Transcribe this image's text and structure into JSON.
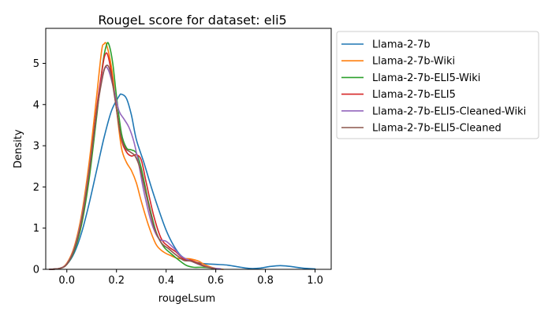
{
  "chart_data": {
    "type": "line",
    "title": "RougeL score for dataset: eli5",
    "xlabel": "rougeLsum",
    "ylabel": "Density",
    "xlim": [
      -0.085,
      1.065
    ],
    "ylim": [
      0,
      5.85
    ],
    "xticks": [
      0.0,
      0.2,
      0.4,
      0.6,
      0.8,
      1.0
    ],
    "xtick_labels": [
      "0.0",
      "0.2",
      "0.4",
      "0.6",
      "0.8",
      "1.0"
    ],
    "yticks": [
      0,
      1,
      2,
      3,
      4,
      5
    ],
    "ytick_labels": [
      "0",
      "1",
      "2",
      "3",
      "4",
      "5"
    ],
    "grid": false,
    "legend_position": "outside-right",
    "series": [
      {
        "name": "Llama-2-7b",
        "color": "#1f77b4",
        "points": [
          [
            -0.07,
            0.0
          ],
          [
            -0.03,
            0.02
          ],
          [
            0.0,
            0.12
          ],
          [
            0.03,
            0.4
          ],
          [
            0.06,
            0.9
          ],
          [
            0.09,
            1.6
          ],
          [
            0.12,
            2.4
          ],
          [
            0.15,
            3.2
          ],
          [
            0.18,
            3.85
          ],
          [
            0.21,
            4.2
          ],
          [
            0.22,
            4.25
          ],
          [
            0.24,
            4.15
          ],
          [
            0.26,
            3.75
          ],
          [
            0.28,
            3.15
          ],
          [
            0.31,
            2.6
          ],
          [
            0.34,
            2.0
          ],
          [
            0.37,
            1.45
          ],
          [
            0.4,
            0.95
          ],
          [
            0.43,
            0.58
          ],
          [
            0.46,
            0.33
          ],
          [
            0.5,
            0.2
          ],
          [
            0.55,
            0.14
          ],
          [
            0.6,
            0.12
          ],
          [
            0.65,
            0.1
          ],
          [
            0.7,
            0.05
          ],
          [
            0.74,
            0.02
          ],
          [
            0.78,
            0.03
          ],
          [
            0.82,
            0.07
          ],
          [
            0.86,
            0.09
          ],
          [
            0.9,
            0.07
          ],
          [
            0.95,
            0.03
          ],
          [
            1.0,
            0.01
          ]
        ]
      },
      {
        "name": "Llama-2-7b-Wiki",
        "color": "#ff7f0e",
        "points": [
          [
            -0.07,
            0.0
          ],
          [
            -0.03,
            0.02
          ],
          [
            0.0,
            0.15
          ],
          [
            0.03,
            0.55
          ],
          [
            0.06,
            1.35
          ],
          [
            0.09,
            2.6
          ],
          [
            0.12,
            4.2
          ],
          [
            0.14,
            5.3
          ],
          [
            0.15,
            5.47
          ],
          [
            0.16,
            5.45
          ],
          [
            0.18,
            4.9
          ],
          [
            0.2,
            3.9
          ],
          [
            0.22,
            2.95
          ],
          [
            0.24,
            2.6
          ],
          [
            0.26,
            2.4
          ],
          [
            0.28,
            2.1
          ],
          [
            0.3,
            1.65
          ],
          [
            0.33,
            1.05
          ],
          [
            0.36,
            0.6
          ],
          [
            0.39,
            0.42
          ],
          [
            0.42,
            0.33
          ],
          [
            0.45,
            0.26
          ],
          [
            0.48,
            0.26
          ],
          [
            0.5,
            0.25
          ],
          [
            0.53,
            0.2
          ],
          [
            0.56,
            0.1
          ],
          [
            0.6,
            0.02
          ],
          [
            0.63,
            0.0
          ]
        ]
      },
      {
        "name": "Llama-2-7b-ELI5-Wiki",
        "color": "#2ca02c",
        "points": [
          [
            -0.07,
            0.0
          ],
          [
            -0.03,
            0.02
          ],
          [
            0.0,
            0.12
          ],
          [
            0.03,
            0.45
          ],
          [
            0.06,
            1.1
          ],
          [
            0.09,
            2.2
          ],
          [
            0.12,
            3.7
          ],
          [
            0.145,
            5.0
          ],
          [
            0.16,
            5.45
          ],
          [
            0.17,
            5.45
          ],
          [
            0.185,
            5.0
          ],
          [
            0.2,
            4.2
          ],
          [
            0.22,
            3.3
          ],
          [
            0.24,
            2.95
          ],
          [
            0.26,
            2.9
          ],
          [
            0.28,
            2.82
          ],
          [
            0.3,
            2.45
          ],
          [
            0.33,
            1.6
          ],
          [
            0.36,
            0.9
          ],
          [
            0.39,
            0.55
          ],
          [
            0.42,
            0.38
          ],
          [
            0.45,
            0.23
          ],
          [
            0.48,
            0.1
          ],
          [
            0.51,
            0.05
          ],
          [
            0.54,
            0.05
          ],
          [
            0.57,
            0.04
          ],
          [
            0.6,
            0.01
          ]
        ]
      },
      {
        "name": "Llama-2-7b-ELI5",
        "color": "#d62728",
        "points": [
          [
            -0.07,
            0.0
          ],
          [
            -0.03,
            0.02
          ],
          [
            0.0,
            0.13
          ],
          [
            0.03,
            0.5
          ],
          [
            0.06,
            1.2
          ],
          [
            0.09,
            2.4
          ],
          [
            0.12,
            3.9
          ],
          [
            0.145,
            4.95
          ],
          [
            0.155,
            5.22
          ],
          [
            0.165,
            5.2
          ],
          [
            0.18,
            4.75
          ],
          [
            0.2,
            3.9
          ],
          [
            0.22,
            3.15
          ],
          [
            0.24,
            2.85
          ],
          [
            0.26,
            2.75
          ],
          [
            0.28,
            2.78
          ],
          [
            0.3,
            2.65
          ],
          [
            0.32,
            2.1
          ],
          [
            0.35,
            1.3
          ],
          [
            0.38,
            0.75
          ],
          [
            0.41,
            0.55
          ],
          [
            0.44,
            0.42
          ],
          [
            0.47,
            0.25
          ],
          [
            0.5,
            0.22
          ],
          [
            0.53,
            0.15
          ],
          [
            0.56,
            0.07
          ],
          [
            0.6,
            0.01
          ]
        ]
      },
      {
        "name": "Llama-2-7b-ELI5-Cleaned-Wiki",
        "color": "#9467bd",
        "points": [
          [
            -0.07,
            0.0
          ],
          [
            -0.03,
            0.02
          ],
          [
            0.0,
            0.13
          ],
          [
            0.03,
            0.5
          ],
          [
            0.06,
            1.25
          ],
          [
            0.09,
            2.4
          ],
          [
            0.12,
            3.8
          ],
          [
            0.14,
            4.6
          ],
          [
            0.155,
            4.9
          ],
          [
            0.17,
            4.8
          ],
          [
            0.19,
            4.35
          ],
          [
            0.21,
            3.85
          ],
          [
            0.23,
            3.65
          ],
          [
            0.25,
            3.45
          ],
          [
            0.27,
            3.1
          ],
          [
            0.29,
            2.55
          ],
          [
            0.31,
            1.9
          ],
          [
            0.34,
            1.15
          ],
          [
            0.37,
            0.75
          ],
          [
            0.4,
            0.68
          ],
          [
            0.43,
            0.52
          ],
          [
            0.46,
            0.32
          ],
          [
            0.5,
            0.2
          ],
          [
            0.54,
            0.1
          ],
          [
            0.58,
            0.04
          ],
          [
            0.62,
            0.01
          ]
        ]
      },
      {
        "name": "Llama-2-7b-ELI5-Cleaned",
        "color": "#8c564b",
        "points": [
          [
            -0.07,
            0.0
          ],
          [
            -0.03,
            0.02
          ],
          [
            0.0,
            0.12
          ],
          [
            0.03,
            0.48
          ],
          [
            0.06,
            1.2
          ],
          [
            0.09,
            2.35
          ],
          [
            0.12,
            3.8
          ],
          [
            0.145,
            4.7
          ],
          [
            0.16,
            4.95
          ],
          [
            0.175,
            4.8
          ],
          [
            0.195,
            4.1
          ],
          [
            0.215,
            3.3
          ],
          [
            0.235,
            2.95
          ],
          [
            0.255,
            2.85
          ],
          [
            0.275,
            2.75
          ],
          [
            0.295,
            2.45
          ],
          [
            0.32,
            1.8
          ],
          [
            0.35,
            1.05
          ],
          [
            0.38,
            0.65
          ],
          [
            0.41,
            0.5
          ],
          [
            0.44,
            0.35
          ],
          [
            0.47,
            0.22
          ],
          [
            0.5,
            0.2
          ],
          [
            0.53,
            0.13
          ],
          [
            0.56,
            0.06
          ],
          [
            0.6,
            0.01
          ]
        ]
      }
    ]
  }
}
